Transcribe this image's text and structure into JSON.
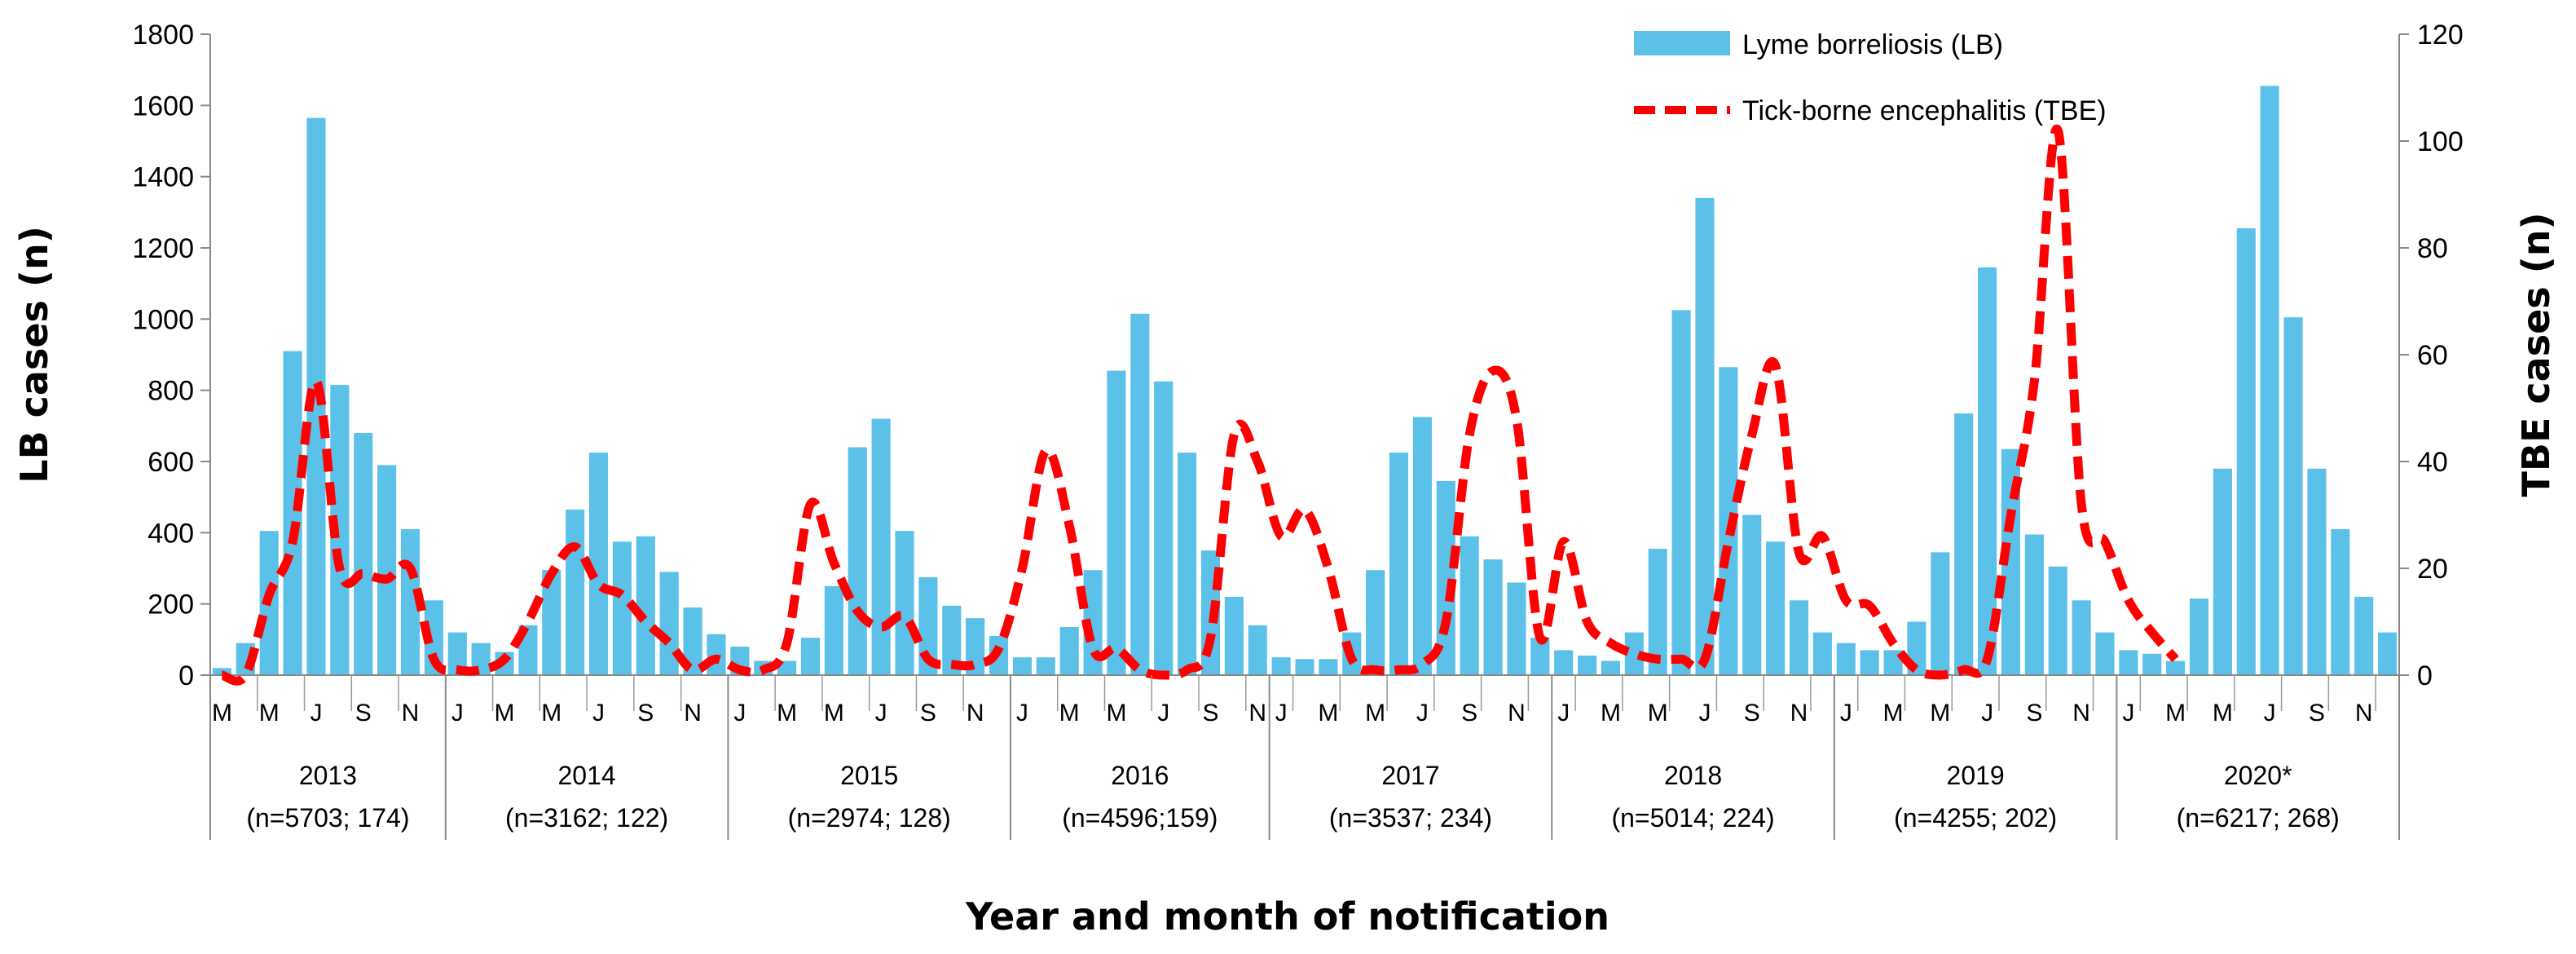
{
  "chart_data": {
    "type": "bar+line",
    "xlabel": "Year and month of notification",
    "ylabel_left": "LB cases (n)",
    "ylabel_right": "TBE cases (n)",
    "ylim_left": [
      0,
      1800
    ],
    "ylim_right": [
      0,
      120
    ],
    "yticks_left": [
      "0",
      "200",
      "400",
      "600",
      "800",
      "1000",
      "1200",
      "1400",
      "1600",
      "1800"
    ],
    "yticks_right": [
      "0",
      "20",
      "40",
      "60",
      "80",
      "100",
      "120"
    ],
    "series": [
      {
        "name": "Lyme borreliosis (LB)",
        "type": "bar",
        "axis": "left",
        "color": "#5BC1E8",
        "values": [
          20,
          90,
          405,
          910,
          1565,
          815,
          680,
          590,
          410,
          210,
          120,
          90,
          65,
          140,
          295,
          465,
          625,
          375,
          390,
          290,
          190,
          115,
          80,
          40,
          40,
          105,
          250,
          640,
          720,
          405,
          275,
          195,
          160,
          110,
          50,
          50,
          135,
          295,
          855,
          1015,
          825,
          625,
          350,
          220,
          140,
          50,
          45,
          45,
          120,
          295,
          625,
          725,
          545,
          390,
          325,
          260,
          105,
          70,
          55,
          40,
          120,
          355,
          1025,
          1340,
          865,
          450,
          375,
          210,
          120,
          90,
          70,
          70,
          150,
          345,
          735,
          1145,
          635,
          395,
          305,
          210,
          120,
          70,
          60,
          40,
          215,
          580,
          1255,
          1655,
          1005,
          580,
          410,
          220,
          120
        ]
      },
      {
        "name": "Tick-borne encephalitis (TBE)",
        "type": "line",
        "axis": "right",
        "color": "#FF0000",
        "values": [
          0,
          0,
          15,
          25,
          55,
          20,
          19,
          18,
          20,
          3,
          1,
          1,
          3,
          10,
          19,
          24,
          17,
          15,
          10,
          6,
          1,
          3,
          1,
          1,
          6,
          32,
          21,
          12,
          9,
          11,
          3,
          2,
          2,
          5,
          20,
          42,
          28,
          5,
          5,
          1,
          0,
          1,
          7,
          45,
          40,
          26,
          31,
          20,
          3,
          1,
          1,
          2,
          10,
          45,
          57,
          48,
          7,
          25,
          10,
          6,
          4,
          3,
          3,
          3,
          25,
          45,
          58,
          23,
          26,
          14,
          13,
          6,
          1,
          0,
          1,
          3,
          30,
          55,
          102,
          32,
          25,
          14,
          8,
          3
        ]
      }
    ],
    "month_labels": [
      "M",
      "M",
      "J",
      "S",
      "N",
      "J",
      "M",
      "M",
      "J",
      "S",
      "N",
      "J",
      "M",
      "M",
      "J",
      "S",
      "N",
      "J",
      "M",
      "M",
      "J",
      "S",
      "N",
      "J",
      "M",
      "M",
      "J",
      "S",
      "N",
      "J",
      "M",
      "M",
      "J",
      "S",
      "N",
      "J",
      "M",
      "M",
      "J",
      "S",
      "N",
      "J",
      "M",
      "M",
      "J",
      "S",
      "N"
    ],
    "years": [
      {
        "label": "2013",
        "sub": "(n=5703; 174)"
      },
      {
        "label": "2014",
        "sub": "(n=3162; 122)"
      },
      {
        "label": "2015",
        "sub": "(n=2974; 128)"
      },
      {
        "label": "2016",
        "sub": "(n=4596;159)"
      },
      {
        "label": "2017",
        "sub": "(n=3537; 234)"
      },
      {
        "label": "2018",
        "sub": "(n=5014; 224)"
      },
      {
        "label": "2019",
        "sub": "(n=4255; 202)"
      },
      {
        "label": "2020*",
        "sub": "(n=6217; 268)"
      }
    ],
    "legend": [
      "Lyme borreliosis (LB)",
      "Tick-borne encephalitis (TBE)"
    ],
    "legend_position": "top-right"
  }
}
